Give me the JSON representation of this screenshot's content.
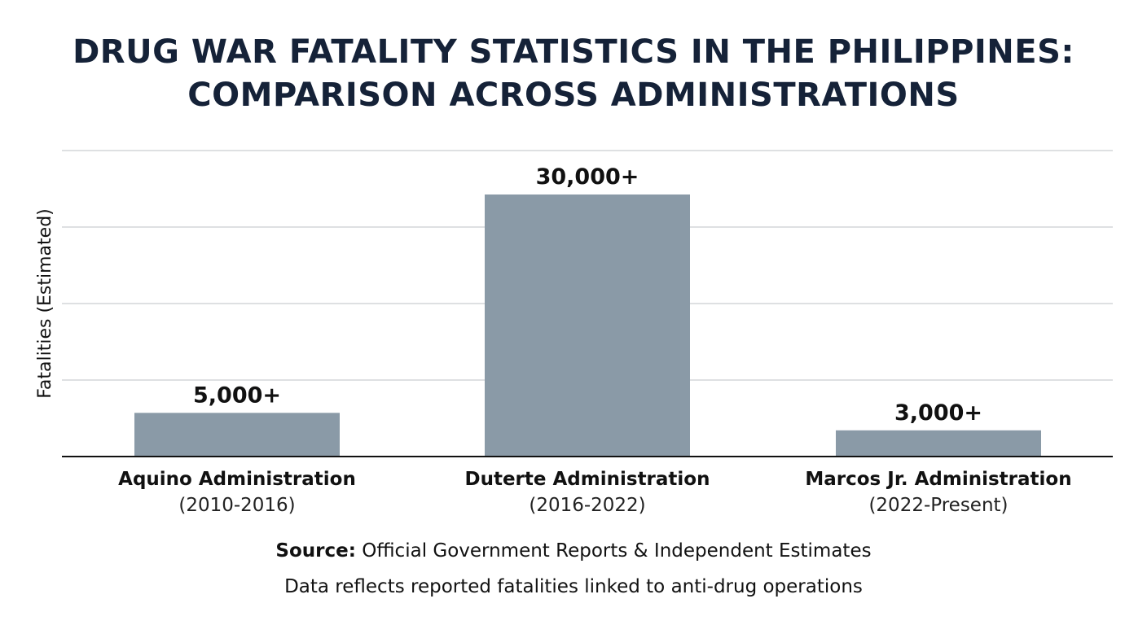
{
  "title_lines": [
    "DRUG WAR FATALITY STATISTICS IN THE PHILIPPINES:",
    "COMPARISON ACROSS ADMINISTRATIONS"
  ],
  "chart_data": {
    "type": "bar",
    "title": "DRUG WAR FATALITY STATISTICS IN THE PHILIPPINES: COMPARISON ACROSS ADMINISTRATIONS",
    "ylabel": "Fatalities (Estimated)",
    "xlabel": "",
    "categories": [
      {
        "name": "Aquino Administration",
        "period": "(2010-2016)"
      },
      {
        "name": "Duterte Administration",
        "period": "(2016-2022)"
      },
      {
        "name": "Marcos Jr. Administration",
        "period": "(2022-Present)"
      }
    ],
    "values": [
      5000,
      30000,
      3000
    ],
    "value_labels": [
      "5,000+",
      "30,000+",
      "3,000+"
    ],
    "grid": true,
    "legend": "none",
    "bar_color": "#8a9aa7"
  },
  "footer": {
    "source_label": "Source:",
    "source_text": "Official Government Reports & Independent Estimates",
    "note": "Data reflects reported fatalities linked to anti-drug operations"
  }
}
